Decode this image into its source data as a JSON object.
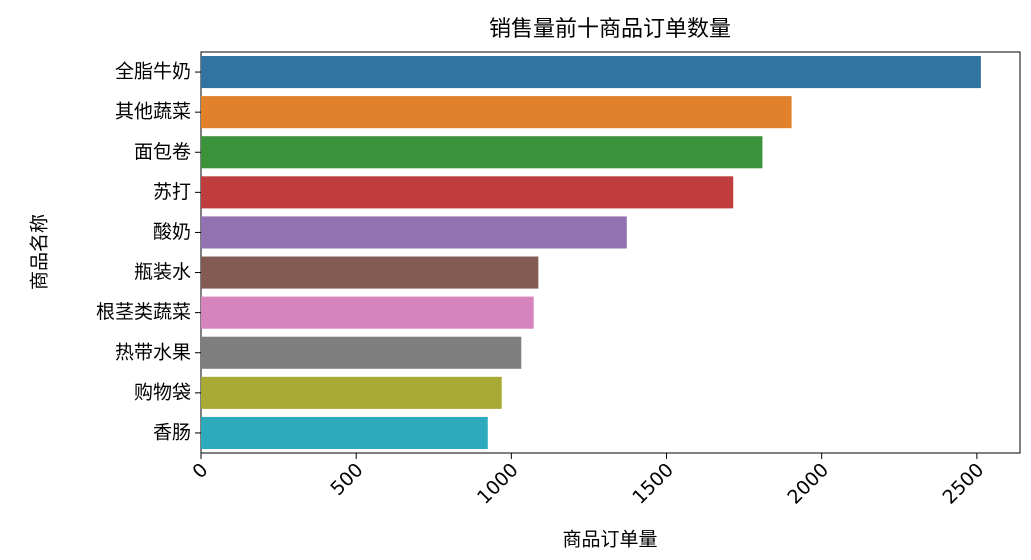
{
  "chart_data": {
    "type": "bar",
    "orientation": "horizontal",
    "title": "销售量前十商品订单数量",
    "x_label": "商品订单量",
    "y_label": "商品名称",
    "categories": [
      "全脂牛奶",
      "其他蔬菜",
      "面包卷",
      "苏打",
      "酸奶",
      "瓶装水",
      "根茎类蔬菜",
      "热带水果",
      "购物袋",
      "香肠"
    ],
    "values": [
      2513,
      1903,
      1809,
      1715,
      1372,
      1087,
      1072,
      1032,
      969,
      924
    ],
    "colors": [
      "#3274a1",
      "#e1812c",
      "#3a923a",
      "#c03d3e",
      "#9372b2",
      "#845b53",
      "#d684bd",
      "#7f7f7f",
      "#a9aa35",
      "#2eaabd"
    ],
    "xlim": [
      0,
      2639
    ],
    "xticks": [
      0,
      500,
      1000,
      1500,
      2000,
      2500
    ]
  }
}
